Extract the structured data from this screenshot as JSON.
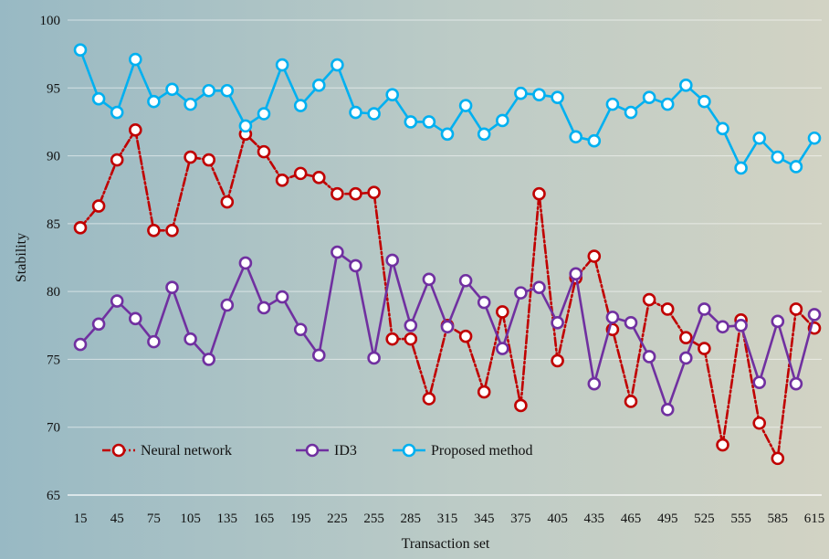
{
  "chart_data": {
    "type": "line",
    "xlabel": "Transaction set",
    "ylabel": "Stability",
    "ylim": [
      65,
      100
    ],
    "yticks": [
      65,
      70,
      75,
      80,
      85,
      90,
      95,
      100
    ],
    "xticks": [
      15,
      45,
      75,
      105,
      135,
      165,
      195,
      225,
      255,
      285,
      315,
      345,
      375,
      405,
      435,
      465,
      495,
      525,
      555,
      585,
      615
    ],
    "xlim": [
      15,
      615
    ],
    "legend_position": "bottom-left",
    "x": [
      15,
      30,
      45,
      60,
      75,
      90,
      105,
      120,
      135,
      150,
      165,
      180,
      195,
      210,
      225,
      240,
      255,
      270,
      285,
      300,
      315,
      330,
      345,
      360,
      375,
      390,
      405,
      420,
      435,
      450,
      465,
      480,
      495,
      510,
      525,
      540,
      555,
      570,
      585,
      600,
      615
    ],
    "series": [
      {
        "name": "Neural network",
        "color": "#c00000",
        "dash": "dashdot",
        "values": [
          84.7,
          86.3,
          89.7,
          91.9,
          84.5,
          84.5,
          89.9,
          89.7,
          86.6,
          91.6,
          90.3,
          88.2,
          88.7,
          88.4,
          87.2,
          87.2,
          87.3,
          76.5,
          76.5,
          72.1,
          77.5,
          76.7,
          72.6,
          78.5,
          71.6,
          87.2,
          74.9,
          81.0,
          82.6,
          77.2,
          71.9,
          79.4,
          78.7,
          76.6,
          75.8,
          68.7,
          77.9,
          70.3,
          67.7,
          78.7,
          77.3
        ]
      },
      {
        "name": "ID3",
        "color": "#7030a0",
        "dash": "solid",
        "values": [
          76.1,
          77.6,
          79.3,
          78.0,
          76.3,
          80.3,
          76.5,
          75.0,
          79.0,
          82.1,
          78.8,
          79.6,
          77.2,
          75.3,
          82.9,
          81.9,
          75.1,
          82.3,
          77.5,
          80.9,
          77.4,
          80.8,
          79.2,
          75.8,
          79.9,
          80.3,
          77.7,
          81.3,
          73.2,
          78.1,
          77.7,
          75.2,
          71.3,
          75.1,
          78.7,
          77.4,
          77.5,
          73.3,
          77.8,
          73.2,
          78.3
        ]
      },
      {
        "name": "Proposed method",
        "color": "#00b0f0",
        "dash": "solid",
        "values": [
          97.8,
          94.2,
          93.2,
          97.1,
          94.0,
          94.9,
          93.8,
          94.8,
          94.8,
          92.2,
          93.1,
          96.7,
          93.7,
          95.2,
          96.7,
          93.2,
          93.1,
          94.5,
          92.5,
          92.5,
          91.6,
          93.7,
          91.6,
          92.6,
          94.6,
          94.5,
          94.3,
          91.4,
          91.1,
          93.8,
          93.2,
          94.3,
          93.8,
          95.2,
          94.0,
          92.0,
          89.1,
          91.3,
          89.9,
          89.2,
          91.3
        ]
      }
    ]
  }
}
